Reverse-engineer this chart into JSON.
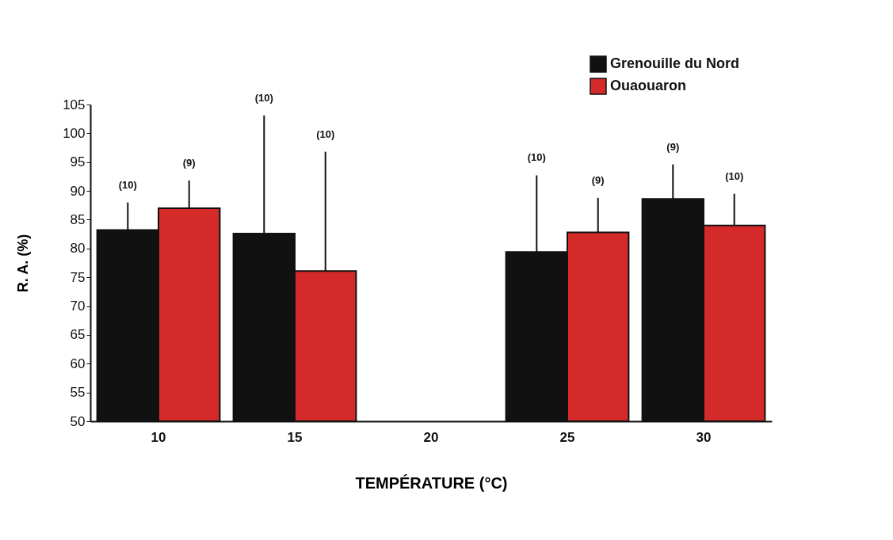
{
  "chart_data": {
    "type": "bar",
    "xlabel": "TEMPÉRATURE (°C)",
    "ylabel": "R. A. (%)",
    "categories": [
      "10",
      "15",
      "20",
      "25",
      "30"
    ],
    "series": [
      {
        "name": "Grenouille du Nord",
        "color": "#111111",
        "values": [
          83.2,
          82.6,
          null,
          79.4,
          88.6
        ],
        "errors": [
          [
            83.2,
            88.0
          ],
          [
            82.6,
            103.1
          ],
          null,
          [
            79.4,
            92.7
          ],
          [
            88.6,
            94.6
          ]
        ]
      },
      {
        "name": "Ouaouaron",
        "color": "#d42a2a",
        "values": [
          87.0,
          76.1,
          null,
          82.8,
          84.0
        ],
        "errors": [
          [
            87.0,
            91.8
          ],
          [
            76.1,
            96.8
          ],
          null,
          [
            82.8,
            88.8
          ],
          [
            84.0,
            89.5
          ]
        ]
      }
    ],
    "ylim": [
      50,
      105
    ],
    "yticks": [
      50,
      55,
      60,
      65,
      70,
      75,
      80,
      85,
      90,
      95,
      100,
      105
    ],
    "grid": false,
    "legend": "top right",
    "annotations": [
      "(10)",
      "(9)",
      "(10)",
      "(10)",
      "(10)",
      "(9)",
      "(9)",
      "(10)"
    ]
  }
}
